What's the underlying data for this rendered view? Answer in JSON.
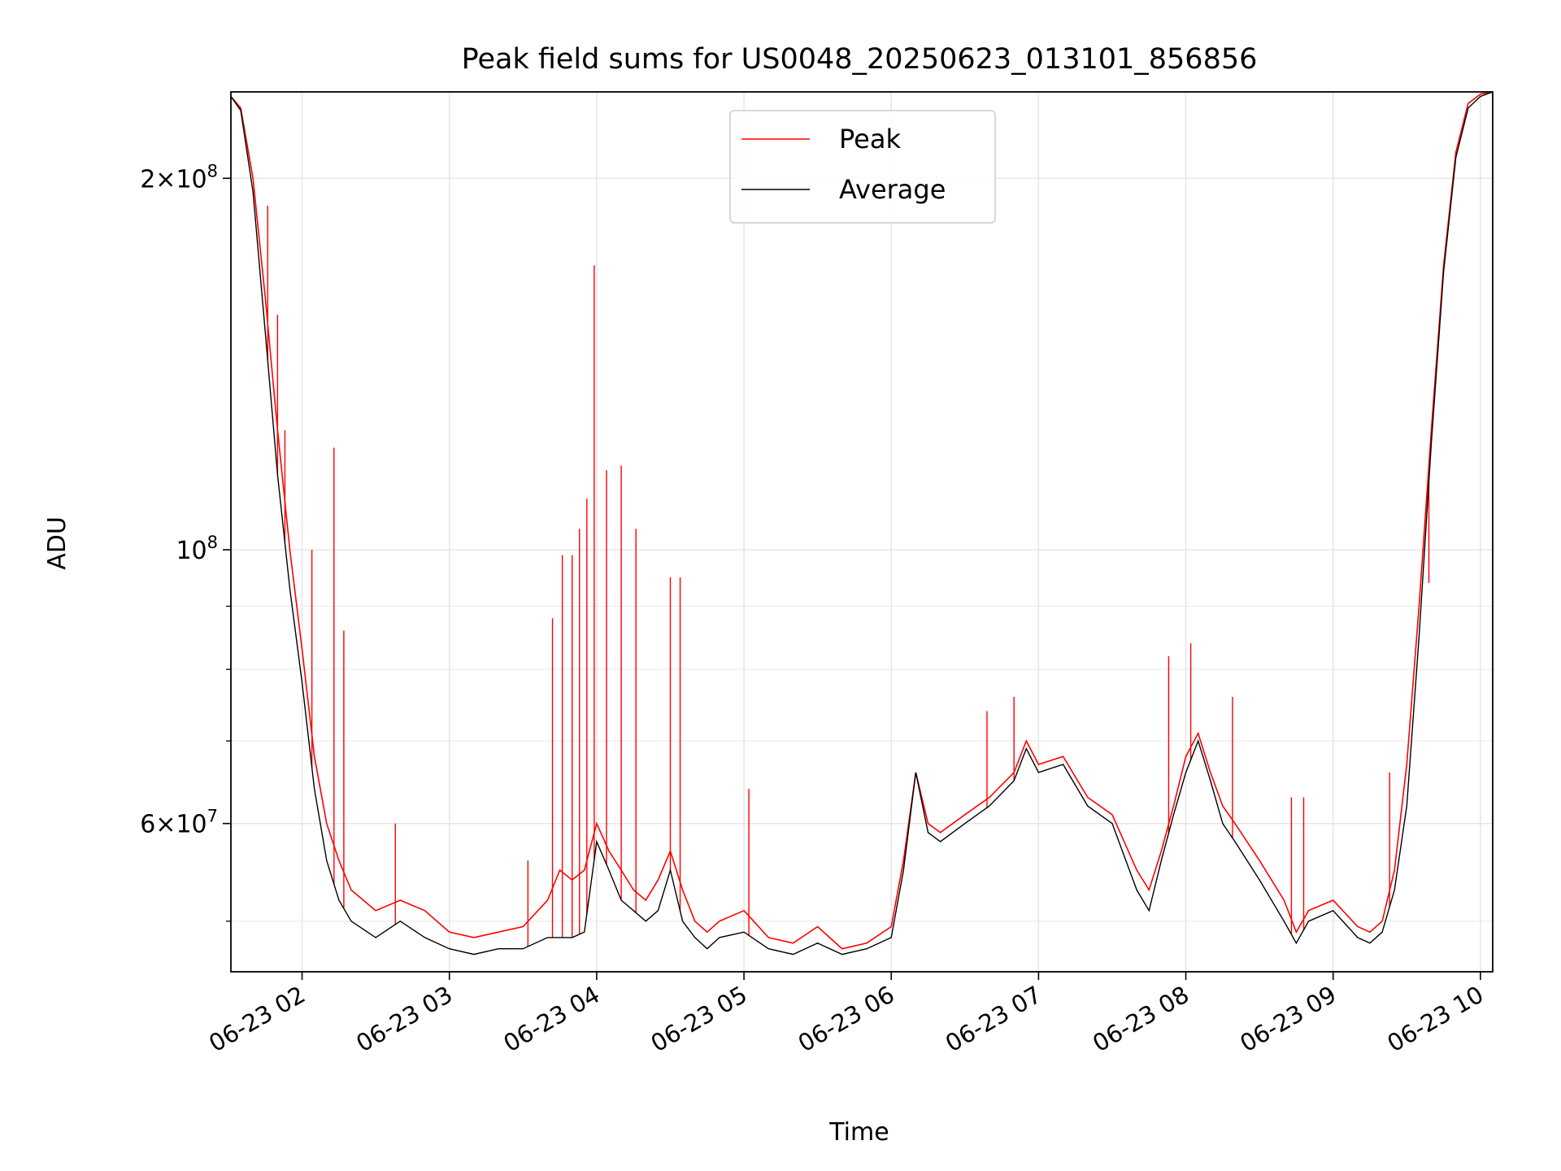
{
  "chart_data": {
    "type": "line",
    "title": "Peak field sums for US0048_20250623_013101_856856",
    "xlabel": "Time",
    "ylabel": "ADU",
    "y_scale": "log",
    "ylim": [
      45500000,
      235000000
    ],
    "xlim": [
      "2025-06-23 01:31:00",
      "2025-06-23 10:05:00"
    ],
    "grid": true,
    "legend_position": "top-center",
    "x_ticks": [
      {
        "time": "2025-06-23 02:00",
        "label": "06-23 02"
      },
      {
        "time": "2025-06-23 03:00",
        "label": "06-23 03"
      },
      {
        "time": "2025-06-23 04:00",
        "label": "06-23 04"
      },
      {
        "time": "2025-06-23 05:00",
        "label": "06-23 05"
      },
      {
        "time": "2025-06-23 06:00",
        "label": "06-23 06"
      },
      {
        "time": "2025-06-23 07:00",
        "label": "06-23 07"
      },
      {
        "time": "2025-06-23 08:00",
        "label": "06-23 08"
      },
      {
        "time": "2025-06-23 09:00",
        "label": "06-23 09"
      },
      {
        "time": "2025-06-23 10:00",
        "label": "06-23 10"
      }
    ],
    "y_major_ticks": [
      {
        "value": 60000000,
        "mantissa": "6",
        "exponent": "7"
      },
      {
        "value": 100000000,
        "mantissa": "",
        "exponent": "8"
      },
      {
        "value": 200000000,
        "mantissa": "2",
        "exponent": "8"
      }
    ],
    "y_minor_ticks": [
      50000000,
      70000000,
      80000000,
      90000000
    ],
    "series": [
      {
        "name": "Peak",
        "color": "#ff0000",
        "x": [
          "2025-06-23 01:31",
          "2025-06-23 01:35",
          "2025-06-23 01:40",
          "2025-06-23 01:45",
          "2025-06-23 01:50",
          "2025-06-23 01:55",
          "2025-06-23 02:00",
          "2025-06-23 02:05",
          "2025-06-23 02:10",
          "2025-06-23 02:15",
          "2025-06-23 02:20",
          "2025-06-23 02:30",
          "2025-06-23 02:40",
          "2025-06-23 02:50",
          "2025-06-23 03:00",
          "2025-06-23 03:10",
          "2025-06-23 03:20",
          "2025-06-23 03:30",
          "2025-06-23 03:40",
          "2025-06-23 03:45",
          "2025-06-23 03:50",
          "2025-06-23 03:55",
          "2025-06-23 04:00",
          "2025-06-23 04:05",
          "2025-06-23 04:10",
          "2025-06-23 04:15",
          "2025-06-23 04:20",
          "2025-06-23 04:25",
          "2025-06-23 04:30",
          "2025-06-23 04:35",
          "2025-06-23 04:40",
          "2025-06-23 04:45",
          "2025-06-23 04:50",
          "2025-06-23 05:00",
          "2025-06-23 05:10",
          "2025-06-23 05:20",
          "2025-06-23 05:30",
          "2025-06-23 05:40",
          "2025-06-23 05:50",
          "2025-06-23 06:00",
          "2025-06-23 06:05",
          "2025-06-23 06:10",
          "2025-06-23 06:15",
          "2025-06-23 06:20",
          "2025-06-23 06:30",
          "2025-06-23 06:40",
          "2025-06-23 06:50",
          "2025-06-23 06:55",
          "2025-06-23 07:00",
          "2025-06-23 07:10",
          "2025-06-23 07:20",
          "2025-06-23 07:30",
          "2025-06-23 07:40",
          "2025-06-23 07:45",
          "2025-06-23 07:50",
          "2025-06-23 07:55",
          "2025-06-23 08:00",
          "2025-06-23 08:05",
          "2025-06-23 08:10",
          "2025-06-23 08:15",
          "2025-06-23 08:20",
          "2025-06-23 08:30",
          "2025-06-23 08:40",
          "2025-06-23 08:45",
          "2025-06-23 08:50",
          "2025-06-23 09:00",
          "2025-06-23 09:10",
          "2025-06-23 09:15",
          "2025-06-23 09:20",
          "2025-06-23 09:25",
          "2025-06-23 09:30",
          "2025-06-23 09:35",
          "2025-06-23 09:40",
          "2025-06-23 09:45",
          "2025-06-23 09:50",
          "2025-06-23 09:55",
          "2025-06-23 10:00",
          "2025-06-23 10:05"
        ],
        "y": [
          233000000,
          228000000,
          200000000,
          160000000,
          125000000,
          100000000,
          83000000,
          68000000,
          60000000,
          56000000,
          53000000,
          51000000,
          52000000,
          51000000,
          49000000,
          48500000,
          49000000,
          49500000,
          52000000,
          55000000,
          54000000,
          55000000,
          60000000,
          57000000,
          55000000,
          53000000,
          52000000,
          54000000,
          57000000,
          53000000,
          50000000,
          49000000,
          50000000,
          51000000,
          48500000,
          48000000,
          49500000,
          47500000,
          48000000,
          49500000,
          56000000,
          66000000,
          60000000,
          59000000,
          61000000,
          63000000,
          66000000,
          70000000,
          67000000,
          68000000,
          63000000,
          61000000,
          55000000,
          53000000,
          57000000,
          62000000,
          68000000,
          71000000,
          66000000,
          62000000,
          60000000,
          56000000,
          52000000,
          49000000,
          51000000,
          52000000,
          49500000,
          49000000,
          50000000,
          55000000,
          67000000,
          90000000,
          125000000,
          170000000,
          210000000,
          230000000,
          234000000,
          235000000
        ],
        "spikes": [
          {
            "x": "2025-06-23 01:46",
            "y": 190000000
          },
          {
            "x": "2025-06-23 01:50",
            "y": 155000000
          },
          {
            "x": "2025-06-23 01:53",
            "y": 125000000
          },
          {
            "x": "2025-06-23 02:04",
            "y": 100000000
          },
          {
            "x": "2025-06-23 02:13",
            "y": 121000000
          },
          {
            "x": "2025-06-23 02:17",
            "y": 86000000
          },
          {
            "x": "2025-06-23 02:38",
            "y": 60000000
          },
          {
            "x": "2025-06-23 03:32",
            "y": 56000000
          },
          {
            "x": "2025-06-23 03:42",
            "y": 88000000
          },
          {
            "x": "2025-06-23 03:46",
            "y": 99000000
          },
          {
            "x": "2025-06-23 03:50",
            "y": 99000000
          },
          {
            "x": "2025-06-23 03:53",
            "y": 104000000
          },
          {
            "x": "2025-06-23 03:56",
            "y": 110000000
          },
          {
            "x": "2025-06-23 03:59",
            "y": 170000000
          },
          {
            "x": "2025-06-23 04:04",
            "y": 116000000
          },
          {
            "x": "2025-06-23 04:10",
            "y": 117000000
          },
          {
            "x": "2025-06-23 04:16",
            "y": 104000000
          },
          {
            "x": "2025-06-23 04:30",
            "y": 95000000
          },
          {
            "x": "2025-06-23 04:34",
            "y": 95000000
          },
          {
            "x": "2025-06-23 05:02",
            "y": 64000000
          },
          {
            "x": "2025-06-23 06:39",
            "y": 74000000
          },
          {
            "x": "2025-06-23 06:50",
            "y": 76000000
          },
          {
            "x": "2025-06-23 07:53",
            "y": 82000000
          },
          {
            "x": "2025-06-23 08:02",
            "y": 84000000
          },
          {
            "x": "2025-06-23 08:19",
            "y": 76000000
          },
          {
            "x": "2025-06-23 08:43",
            "y": 63000000
          },
          {
            "x": "2025-06-23 08:48",
            "y": 63000000
          },
          {
            "x": "2025-06-23 09:23",
            "y": 66000000
          },
          {
            "x": "2025-06-23 09:34",
            "y": 80000000
          },
          {
            "x": "2025-06-23 09:39",
            "y": 94000000
          }
        ]
      },
      {
        "name": "Average",
        "color": "#000000",
        "x": [
          "2025-06-23 01:31",
          "2025-06-23 01:35",
          "2025-06-23 01:40",
          "2025-06-23 01:45",
          "2025-06-23 01:50",
          "2025-06-23 01:55",
          "2025-06-23 02:00",
          "2025-06-23 02:05",
          "2025-06-23 02:10",
          "2025-06-23 02:15",
          "2025-06-23 02:20",
          "2025-06-23 02:30",
          "2025-06-23 02:40",
          "2025-06-23 02:50",
          "2025-06-23 03:00",
          "2025-06-23 03:10",
          "2025-06-23 03:20",
          "2025-06-23 03:30",
          "2025-06-23 03:40",
          "2025-06-23 03:45",
          "2025-06-23 03:50",
          "2025-06-23 03:55",
          "2025-06-23 04:00",
          "2025-06-23 04:05",
          "2025-06-23 04:10",
          "2025-06-23 04:15",
          "2025-06-23 04:20",
          "2025-06-23 04:25",
          "2025-06-23 04:30",
          "2025-06-23 04:35",
          "2025-06-23 04:40",
          "2025-06-23 04:45",
          "2025-06-23 04:50",
          "2025-06-23 05:00",
          "2025-06-23 05:10",
          "2025-06-23 05:20",
          "2025-06-23 05:30",
          "2025-06-23 05:40",
          "2025-06-23 05:50",
          "2025-06-23 06:00",
          "2025-06-23 06:05",
          "2025-06-23 06:10",
          "2025-06-23 06:15",
          "2025-06-23 06:20",
          "2025-06-23 06:30",
          "2025-06-23 06:40",
          "2025-06-23 06:50",
          "2025-06-23 06:55",
          "2025-06-23 07:00",
          "2025-06-23 07:10",
          "2025-06-23 07:20",
          "2025-06-23 07:30",
          "2025-06-23 07:40",
          "2025-06-23 07:45",
          "2025-06-23 07:50",
          "2025-06-23 07:55",
          "2025-06-23 08:00",
          "2025-06-23 08:05",
          "2025-06-23 08:10",
          "2025-06-23 08:15",
          "2025-06-23 08:20",
          "2025-06-23 08:30",
          "2025-06-23 08:40",
          "2025-06-23 08:45",
          "2025-06-23 08:50",
          "2025-06-23 09:00",
          "2025-06-23 09:10",
          "2025-06-23 09:15",
          "2025-06-23 09:20",
          "2025-06-23 09:25",
          "2025-06-23 09:30",
          "2025-06-23 09:35",
          "2025-06-23 09:40",
          "2025-06-23 09:45",
          "2025-06-23 09:50",
          "2025-06-23 09:55",
          "2025-06-23 10:00",
          "2025-06-23 10:05"
        ],
        "y": [
          233000000,
          227000000,
          195000000,
          150000000,
          115000000,
          93000000,
          78000000,
          64000000,
          56000000,
          52000000,
          50000000,
          48500000,
          50000000,
          48500000,
          47500000,
          47000000,
          47500000,
          47500000,
          48500000,
          48500000,
          48500000,
          49000000,
          58000000,
          55000000,
          52000000,
          51000000,
          50000000,
          51000000,
          55000000,
          50000000,
          48500000,
          47500000,
          48500000,
          49000000,
          47500000,
          47000000,
          48000000,
          47000000,
          47500000,
          48500000,
          55000000,
          66000000,
          59000000,
          58000000,
          60000000,
          62000000,
          65000000,
          69000000,
          66000000,
          67000000,
          62000000,
          60000000,
          53000000,
          51000000,
          56000000,
          61000000,
          66000000,
          70000000,
          65000000,
          60000000,
          58000000,
          54000000,
          50000000,
          48000000,
          50000000,
          51000000,
          48500000,
          48000000,
          49000000,
          53000000,
          62000000,
          85000000,
          122000000,
          168000000,
          208000000,
          228000000,
          233000000,
          235000000
        ]
      }
    ]
  }
}
